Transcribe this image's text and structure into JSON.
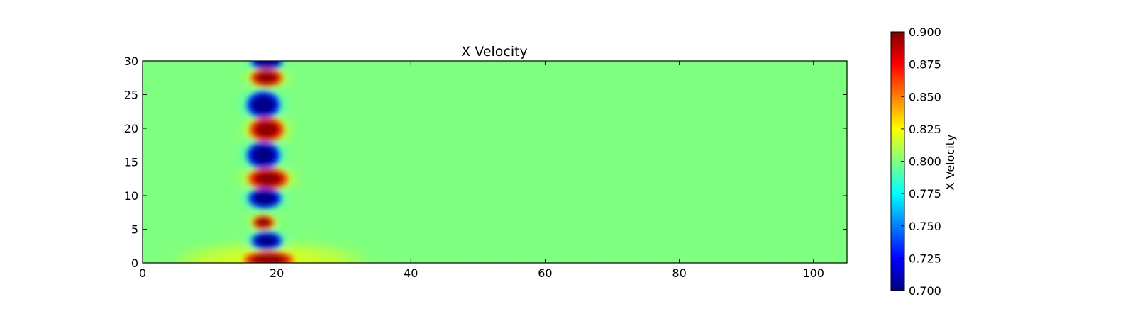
{
  "chart_data": {
    "type": "heatmap",
    "title": "X Velocity",
    "xlabel": "",
    "ylabel": "",
    "xlim": [
      0,
      105
    ],
    "ylim": [
      0,
      30
    ],
    "xticks": [
      0,
      20,
      40,
      60,
      80,
      100
    ],
    "yticks": [
      0,
      5,
      10,
      15,
      20,
      25,
      30
    ],
    "background_value": 0.8,
    "colormap": "jet",
    "colormap_stops": [
      "#00007f",
      "#0000ff",
      "#007fff",
      "#00ffff",
      "#7fff7f",
      "#ffff00",
      "#ff7f00",
      "#ff0000",
      "#7f0000"
    ],
    "colorbar": {
      "label": "X Velocity",
      "range": [
        0.7,
        0.9
      ],
      "ticks": [
        "0.700",
        "0.725",
        "0.750",
        "0.775",
        "0.800",
        "0.825",
        "0.850",
        "0.875",
        "0.900"
      ]
    },
    "features": [
      {
        "kind": "low",
        "value": 0.7,
        "x": 18.5,
        "y": 29.8,
        "rx": 2.4,
        "ry": 1.0
      },
      {
        "kind": "high",
        "value": 0.9,
        "x": 18.5,
        "y": 27.5,
        "rx": 2.4,
        "ry": 1.3
      },
      {
        "kind": "low",
        "value": 0.7,
        "x": 18.0,
        "y": 23.5,
        "rx": 2.5,
        "ry": 2.0
      },
      {
        "kind": "high",
        "value": 0.9,
        "x": 18.5,
        "y": 19.8,
        "rx": 2.6,
        "ry": 1.8
      },
      {
        "kind": "low",
        "value": 0.7,
        "x": 18.0,
        "y": 16.0,
        "rx": 2.5,
        "ry": 2.0
      },
      {
        "kind": "high",
        "value": 0.9,
        "x": 18.7,
        "y": 12.5,
        "rx": 3.0,
        "ry": 1.6
      },
      {
        "kind": "low",
        "value": 0.7,
        "x": 18.2,
        "y": 9.6,
        "rx": 2.5,
        "ry": 1.5
      },
      {
        "kind": "high",
        "value": 0.9,
        "x": 18.0,
        "y": 6.0,
        "rx": 1.6,
        "ry": 1.0
      },
      {
        "kind": "low",
        "value": 0.7,
        "x": 18.5,
        "y": 3.3,
        "rx": 2.3,
        "ry": 1.3
      },
      {
        "kind": "high",
        "value": 0.9,
        "x": 18.8,
        "y": 0.5,
        "rx": 3.8,
        "ry": 1.2
      }
    ]
  }
}
